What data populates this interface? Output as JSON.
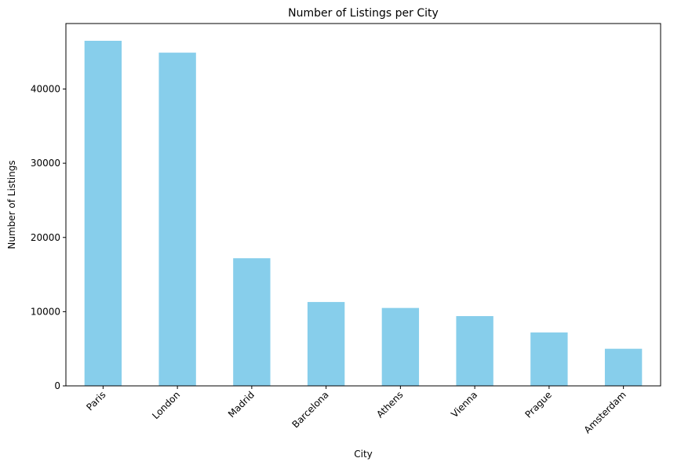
{
  "chart_data": {
    "type": "bar",
    "title": "Number of Listings per City",
    "xlabel": "City",
    "ylabel": "Number of Listings",
    "categories": [
      "Paris",
      "London",
      "Madrid",
      "Barcelona",
      "Athens",
      "Vienna",
      "Prague",
      "Amsterdam"
    ],
    "values": [
      46500,
      44900,
      17200,
      11300,
      10500,
      9400,
      7200,
      5000
    ],
    "yticks": [
      0,
      10000,
      20000,
      30000,
      40000
    ],
    "ylim": [
      0,
      48825
    ],
    "bar_color": "#87ceeb",
    "grid": false,
    "legend": false
  }
}
